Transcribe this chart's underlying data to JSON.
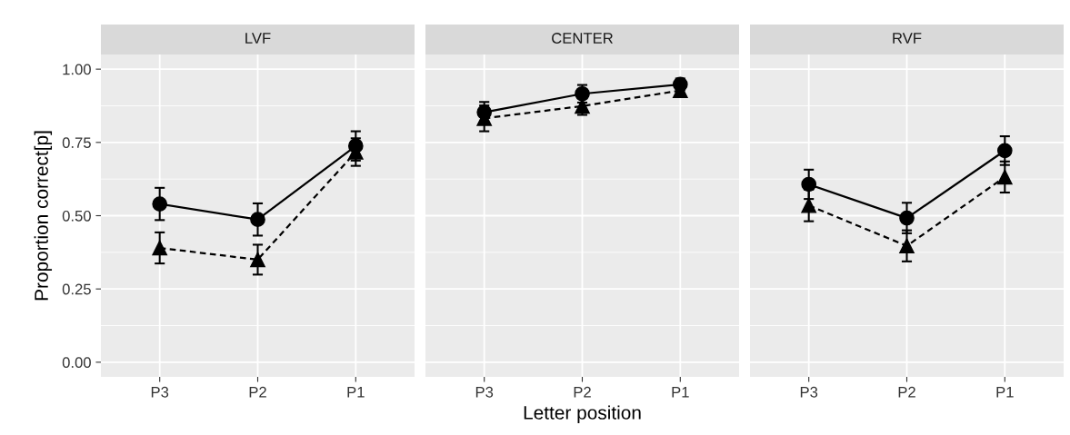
{
  "chart_data": [
    {
      "type": "line",
      "title": "LVF",
      "ylabel": "Proportion correct[p]",
      "categories": [
        "P3",
        "P2",
        "P1"
      ],
      "ylim": [
        -0.05,
        1.05
      ],
      "yticks": [
        {
          "value": 0,
          "label": "0.00"
        },
        {
          "value": 0.25,
          "label": "0.25"
        },
        {
          "value": 0.5,
          "label": "0.50"
        },
        {
          "value": 0.75,
          "label": "0.75"
        },
        {
          "value": 1,
          "label": "1.00"
        }
      ],
      "grid": true,
      "series": [
        {
          "color": "#000000",
          "marker": "circle",
          "line_style": "solid",
          "values": [
            0.54,
            0.487,
            0.738
          ],
          "errors": [
            0.055,
            0.055,
            0.05
          ]
        },
        {
          "color": "#000000",
          "marker": "triangle",
          "line_style": "dashed",
          "values": [
            0.39,
            0.35,
            0.717
          ],
          "errors": [
            0.053,
            0.051,
            0.047
          ]
        }
      ]
    },
    {
      "type": "line",
      "title": "CENTER",
      "xlabel": "Letter position",
      "categories": [
        "P3",
        "P2",
        "P1"
      ],
      "ylim": [
        -0.05,
        1.05
      ],
      "tick_labels": "x",
      "grid": true,
      "series": [
        {
          "color": "#000000",
          "marker": "circle",
          "line_style": "solid",
          "values": [
            0.853,
            0.916,
            0.948
          ],
          "errors": [
            0.035,
            0.03,
            0.02
          ]
        },
        {
          "color": "#000000",
          "marker": "triangle",
          "line_style": "dashed",
          "values": [
            0.832,
            0.874,
            0.927
          ],
          "errors": [
            0.044,
            0.03,
            0.015
          ]
        }
      ]
    },
    {
      "type": "line",
      "title": "RVF",
      "categories": [
        "P3",
        "P2",
        "P1"
      ],
      "ylim": [
        -0.05,
        1.05
      ],
      "tick_labels": "x",
      "grid": true,
      "series": [
        {
          "color": "#000000",
          "marker": "circle",
          "line_style": "solid",
          "values": [
            0.607,
            0.492,
            0.722
          ],
          "errors": [
            0.05,
            0.052,
            0.049
          ]
        },
        {
          "color": "#000000",
          "marker": "triangle",
          "line_style": "dashed",
          "values": [
            0.535,
            0.397,
            0.632
          ],
          "errors": [
            0.054,
            0.053,
            0.053
          ]
        }
      ]
    }
  ]
}
